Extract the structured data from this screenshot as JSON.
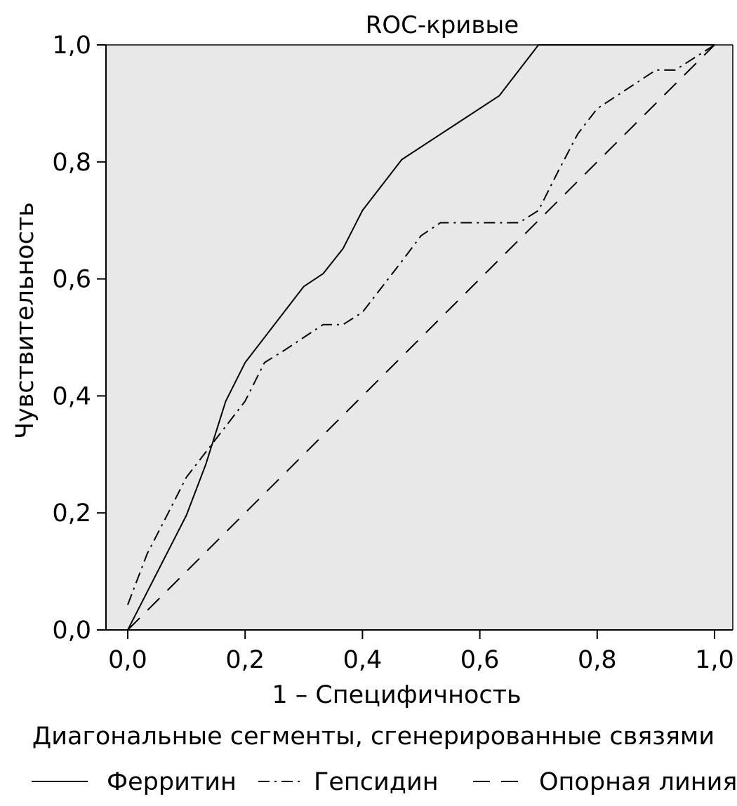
{
  "chart_data": {
    "type": "line",
    "title": "ROC-кривые",
    "xlabel": "1 – Специфичность",
    "ylabel": "Чувствительность",
    "xlim": [
      0,
      1
    ],
    "ylim": [
      0,
      1
    ],
    "x_ticks": [
      "0,0",
      "0,2",
      "0,4",
      "0,6",
      "0,8",
      "1,0"
    ],
    "y_ticks": [
      "0,0",
      "0,2",
      "0,4",
      "0,6",
      "0,8",
      "1,0"
    ],
    "grid": false,
    "plot_background": "#e8e8e8",
    "footnote": "Диагональные сегменты, сгенерированные связями",
    "legend_position": "bottom",
    "series": [
      {
        "name": "Ферритин",
        "style": "solid",
        "x": [
          0.0,
          0.1,
          0.133,
          0.167,
          0.2,
          0.3,
          0.333,
          0.367,
          0.4,
          0.467,
          0.633,
          0.7,
          1.0
        ],
        "y": [
          0.0,
          0.196,
          0.283,
          0.391,
          0.457,
          0.587,
          0.609,
          0.652,
          0.717,
          0.804,
          0.913,
          1.0,
          1.0
        ]
      },
      {
        "name": "Гепсидин",
        "style": "dash-dot",
        "x": [
          0.0,
          0.033,
          0.067,
          0.1,
          0.133,
          0.167,
          0.2,
          0.233,
          0.267,
          0.3,
          0.333,
          0.367,
          0.4,
          0.467,
          0.5,
          0.533,
          0.667,
          0.7,
          0.733,
          0.767,
          0.8,
          0.9,
          0.933,
          1.0
        ],
        "y": [
          0.043,
          0.13,
          0.196,
          0.261,
          0.304,
          0.348,
          0.391,
          0.457,
          0.478,
          0.5,
          0.522,
          0.522,
          0.543,
          0.63,
          0.674,
          0.696,
          0.696,
          0.717,
          0.783,
          0.848,
          0.891,
          0.957,
          0.957,
          1.0
        ]
      },
      {
        "name": "Опорная линия",
        "style": "dashed",
        "x": [
          0.0,
          1.0
        ],
        "y": [
          0.0,
          1.0
        ]
      }
    ]
  }
}
